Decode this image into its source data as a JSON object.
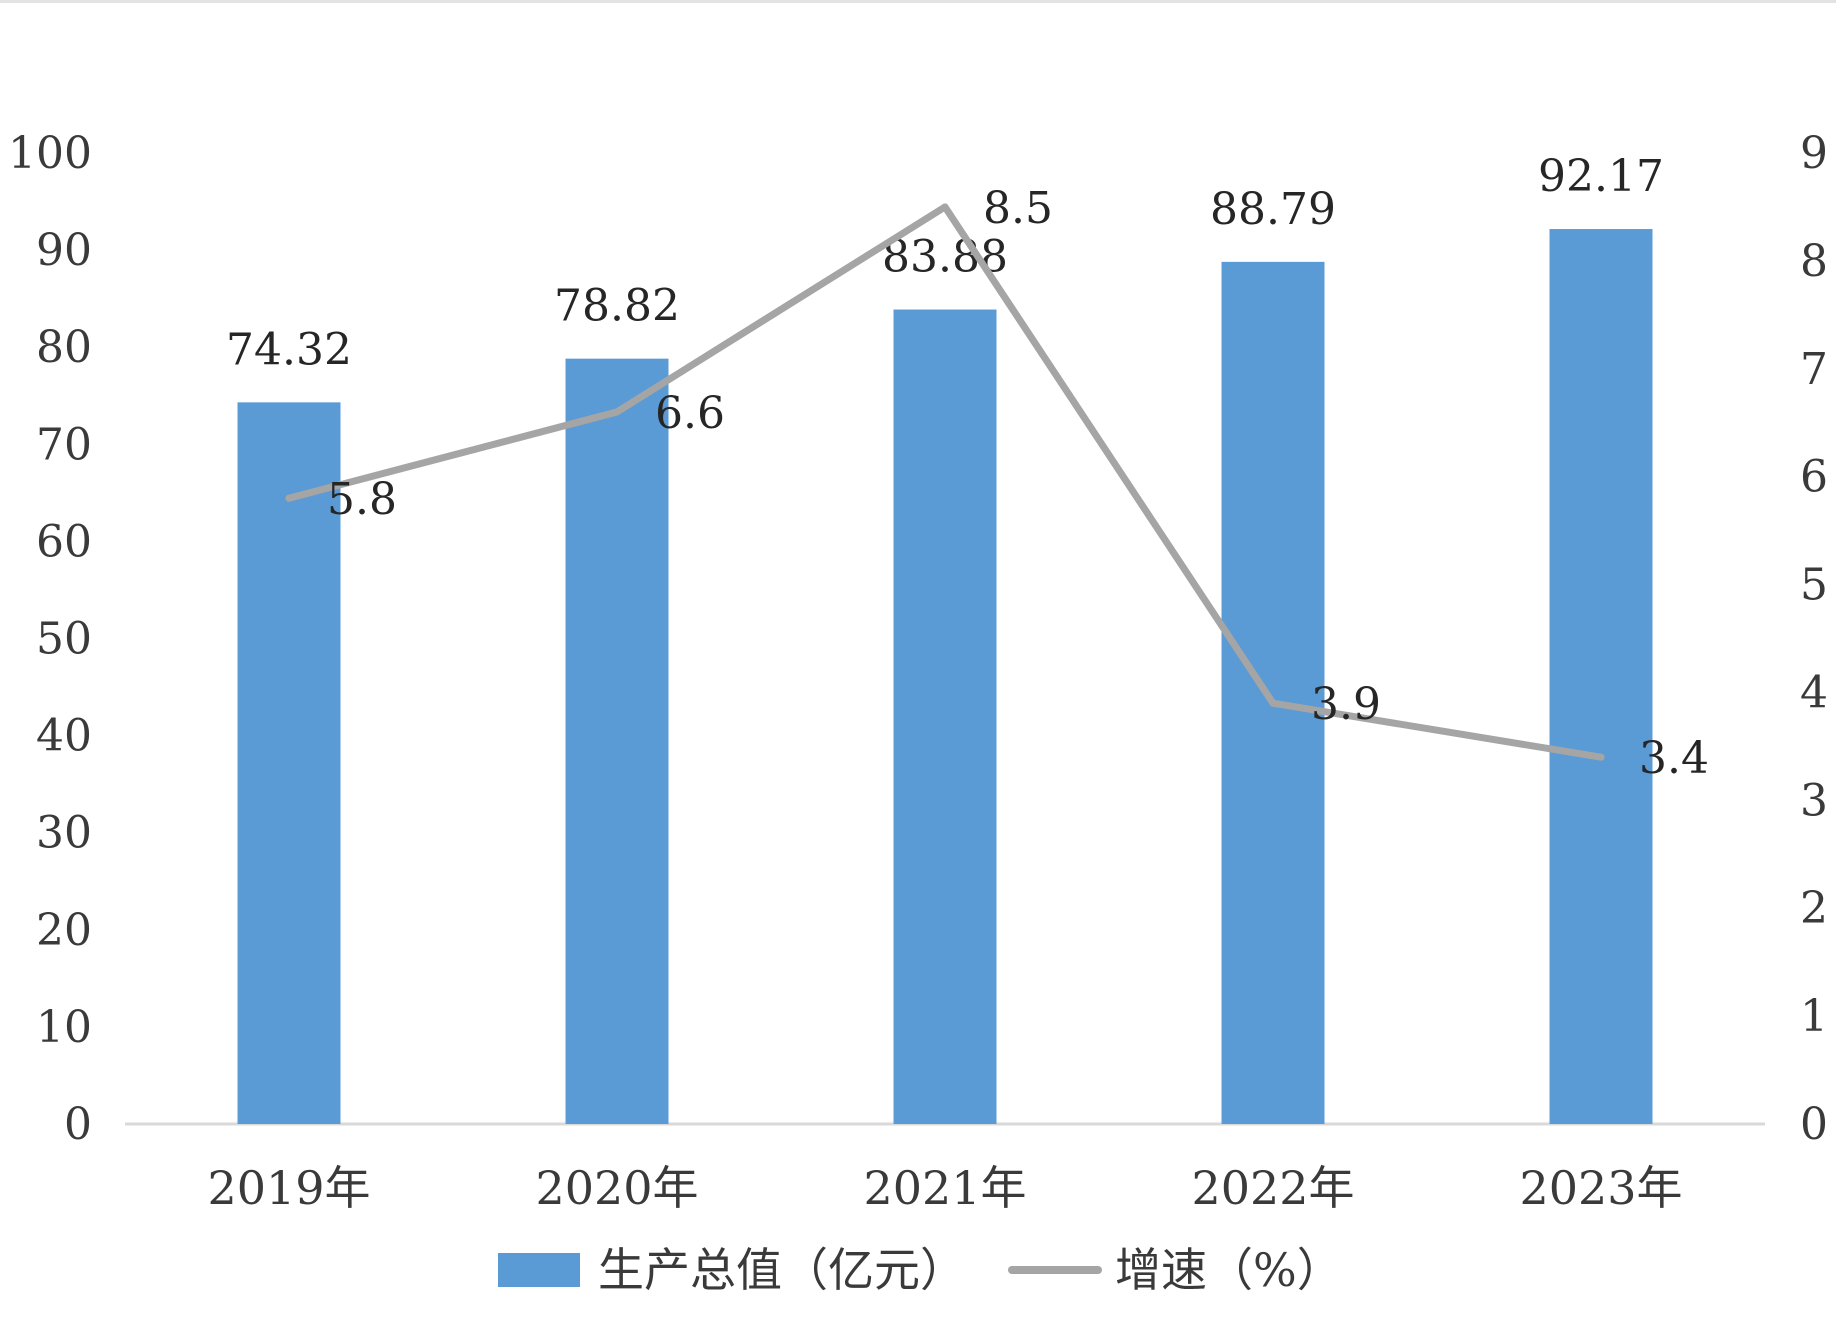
{
  "chart_data": {
    "type": "bar",
    "categories": [
      "2019年",
      "2020年",
      "2021年",
      "2022年",
      "2023年"
    ],
    "series": [
      {
        "name": "生产总值（亿元）",
        "type": "bar",
        "axis": "left",
        "color": "#5b9bd5",
        "values": [
          74.32,
          78.82,
          83.88,
          88.79,
          92.17
        ],
        "labels": [
          "74.32",
          "78.82",
          "83.88",
          "88.79",
          "92.17"
        ]
      },
      {
        "name": "增速（%）",
        "type": "line",
        "axis": "right",
        "color": "#a5a5a5",
        "values": [
          5.8,
          6.6,
          8.5,
          3.9,
          3.4
        ],
        "labels": [
          "5.8",
          "6.6",
          "8.5",
          "3.9",
          "3.4"
        ]
      }
    ],
    "y_left": {
      "range": [
        0,
        100
      ],
      "ticks": [
        "0",
        "10",
        "20",
        "30",
        "40",
        "50",
        "60",
        "70",
        "80",
        "90",
        "100"
      ]
    },
    "y_right": {
      "range": [
        0,
        9
      ],
      "ticks": [
        "0",
        "1",
        "2",
        "3",
        "4",
        "5",
        "6",
        "7",
        "8",
        "9"
      ]
    },
    "grid": false,
    "legend": {
      "position": "bottom-center",
      "items": [
        "生产总值（亿元）",
        "增速（%）"
      ]
    },
    "colors": {
      "bar": "#5b9bd5",
      "line": "#a5a5a5",
      "axis": "#d9d9d9",
      "text": "#3a3a3a"
    }
  }
}
